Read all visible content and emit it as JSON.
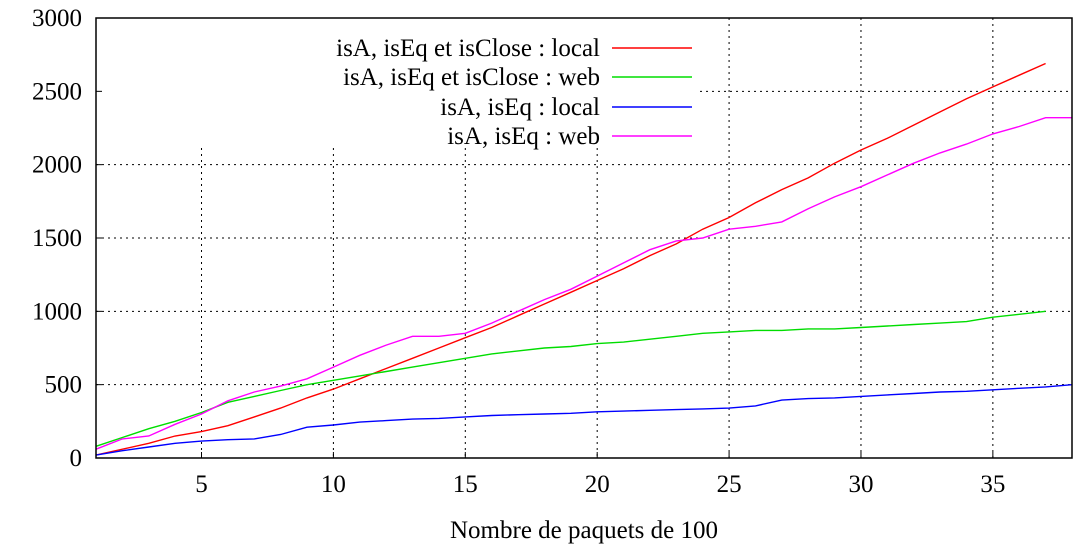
{
  "chart_data": {
    "type": "line",
    "title": "",
    "xlabel": "Nombre de paquets de 100",
    "ylabel": "",
    "xlim": [
      1,
      38
    ],
    "ylim": [
      0,
      3000
    ],
    "x_ticks": [
      5,
      10,
      15,
      20,
      25,
      30,
      35
    ],
    "y_ticks": [
      0,
      500,
      1000,
      1500,
      2000,
      2500,
      3000
    ],
    "grid": true,
    "legend_position": "top-left",
    "series": [
      {
        "name": "isA, isEq et isClose : local",
        "color": "#ff0000",
        "x": [
          1,
          3,
          4,
          5,
          6,
          7,
          8,
          9,
          10,
          11,
          12,
          13,
          14,
          15,
          16,
          17,
          18,
          19,
          20,
          21,
          22,
          23,
          24,
          25,
          26,
          27,
          28,
          29,
          30,
          31,
          32,
          33,
          34,
          35,
          36,
          37
        ],
        "y": [
          20,
          100,
          150,
          180,
          220,
          280,
          340,
          410,
          470,
          540,
          610,
          680,
          750,
          820,
          890,
          970,
          1050,
          1130,
          1210,
          1290,
          1380,
          1460,
          1560,
          1640,
          1740,
          1830,
          1910,
          2010,
          2100,
          2180,
          2270,
          2360,
          2450,
          2530,
          2610,
          2690
        ]
      },
      {
        "name": "isA, isEq et isClose : web",
        "color": "#00dd00",
        "x": [
          1,
          2,
          3,
          4,
          5,
          6,
          7,
          8,
          9,
          10,
          11,
          12,
          13,
          14,
          15,
          16,
          17,
          18,
          19,
          20,
          21,
          22,
          23,
          24,
          25,
          26,
          27,
          28,
          29,
          30,
          31,
          32,
          33,
          34,
          35,
          36,
          37
        ],
        "y": [
          80,
          140,
          200,
          250,
          310,
          380,
          420,
          460,
          500,
          530,
          560,
          590,
          620,
          650,
          680,
          710,
          730,
          750,
          760,
          780,
          790,
          810,
          830,
          850,
          860,
          870,
          870,
          880,
          880,
          890,
          900,
          910,
          920,
          930,
          960,
          980,
          1000
        ]
      },
      {
        "name": "isA, isEq : local",
        "color": "#0000ff",
        "x": [
          1,
          2,
          3,
          4,
          5,
          6,
          7,
          8,
          9,
          10,
          11,
          12,
          13,
          14,
          15,
          16,
          17,
          18,
          19,
          20,
          21,
          22,
          23,
          24,
          25,
          26,
          27,
          28,
          29,
          30,
          31,
          32,
          33,
          34,
          35,
          36,
          37,
          38
        ],
        "y": [
          20,
          50,
          75,
          100,
          115,
          125,
          130,
          160,
          210,
          225,
          245,
          255,
          265,
          270,
          280,
          290,
          295,
          300,
          305,
          315,
          320,
          325,
          330,
          335,
          340,
          355,
          395,
          405,
          410,
          420,
          430,
          440,
          450,
          455,
          465,
          475,
          485,
          500
        ]
      },
      {
        "name": "isA, isEq : web",
        "color": "#ff00ff",
        "x": [
          1,
          2,
          3,
          4,
          5,
          6,
          7,
          8,
          9,
          10,
          11,
          12,
          13,
          14,
          15,
          16,
          17,
          18,
          19,
          20,
          21,
          22,
          23,
          24,
          25,
          26,
          27,
          28,
          29,
          30,
          31,
          32,
          33,
          34,
          35,
          36,
          37,
          38
        ],
        "y": [
          60,
          130,
          150,
          230,
          300,
          390,
          450,
          490,
          540,
          620,
          700,
          770,
          830,
          830,
          850,
          920,
          1000,
          1080,
          1150,
          1240,
          1330,
          1420,
          1480,
          1500,
          1560,
          1580,
          1610,
          1700,
          1780,
          1850,
          1930,
          2010,
          2080,
          2140,
          2210,
          2260,
          2320,
          2320
        ]
      }
    ]
  }
}
